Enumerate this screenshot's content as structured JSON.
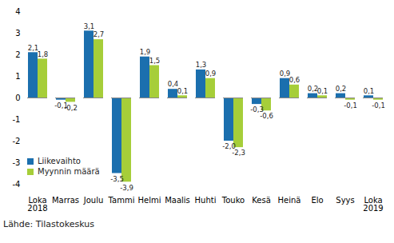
{
  "chart_data": {
    "type": "bar",
    "categories": [
      "Loka\n2018",
      "Marras",
      "Joulu",
      "Tammi",
      "Helmi",
      "Maalis",
      "Huhti",
      "Touko",
      "Kesä",
      "Heinä",
      "Elo",
      "Syys",
      "Loka\n2019"
    ],
    "series": [
      {
        "name": "Liikevaihto",
        "color": "#1b6fae",
        "values": [
          2.1,
          -0.1,
          3.1,
          -3.5,
          1.9,
          0.4,
          1.3,
          -2.0,
          -0.3,
          0.9,
          0.2,
          0.2,
          0.1
        ],
        "value_labels": [
          "2,1",
          "-0,1",
          "3,1",
          "-3,5",
          "1,9",
          "0,4",
          "1,3",
          "-2,0",
          "-0,3",
          "0,9",
          "0,2",
          "0,2",
          "0,1"
        ]
      },
      {
        "name": "Myynnin määrä",
        "color": "#a6ce39",
        "values": [
          1.8,
          -0.2,
          2.7,
          -3.9,
          1.5,
          0.1,
          0.9,
          -2.3,
          -0.6,
          0.6,
          0.1,
          -0.1,
          -0.1
        ],
        "value_labels": [
          "1,8",
          "-0,2",
          "2,7",
          "-3,9",
          "1,5",
          "0,1",
          "0,9",
          "-2,3",
          "-0,6",
          "0,6",
          "0,1",
          "-0,1",
          "-0,1"
        ]
      }
    ],
    "ylim": [
      -4,
      4
    ],
    "yticks": [
      -4,
      -3,
      -2,
      -1,
      0,
      1,
      2,
      3,
      4
    ],
    "grid": false,
    "data_labels": true,
    "legend": "bottom-left",
    "caption": "Lähde: Tilastokeskus"
  }
}
